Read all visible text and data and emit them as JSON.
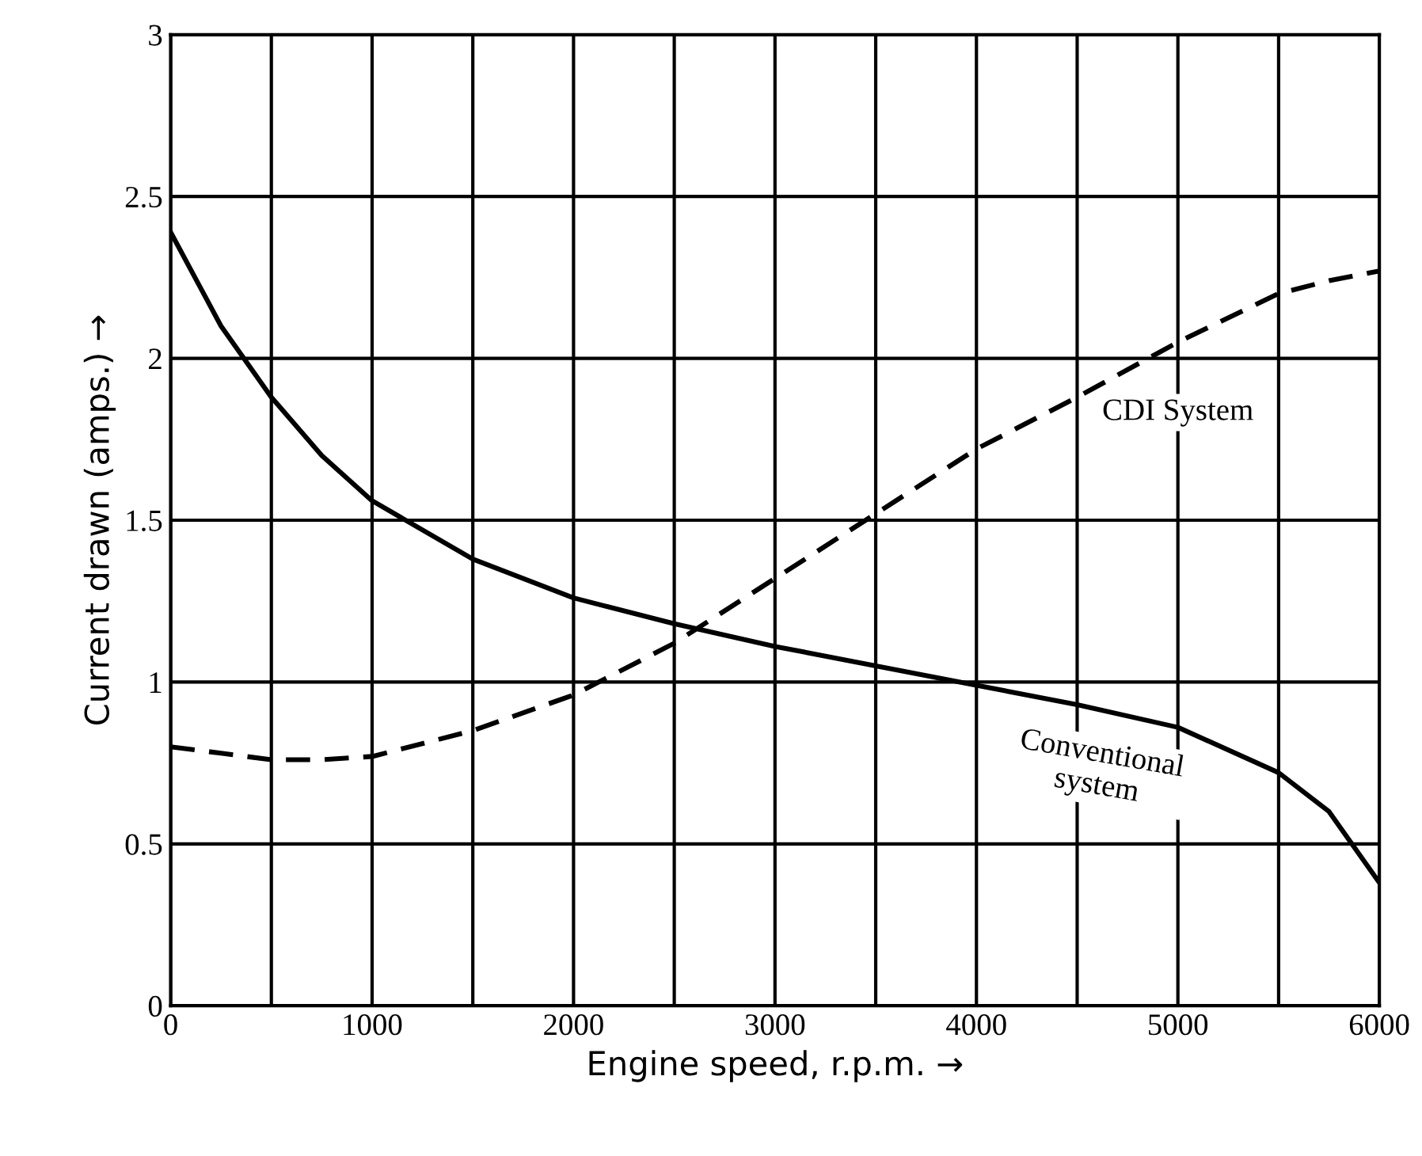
{
  "chart_data": {
    "type": "line",
    "xlabel": "Engine speed, r.p.m. →",
    "ylabel": "Current drawn (amps.) →",
    "x": [
      0,
      250,
      500,
      750,
      1000,
      1500,
      2000,
      2500,
      3000,
      3500,
      4000,
      4500,
      5000,
      5500,
      5750,
      6000
    ],
    "series": [
      {
        "name": "Conventional\nsystem",
        "color": "#000000",
        "line_style": "solid",
        "values": [
          2.39,
          2.1,
          1.88,
          1.7,
          1.56,
          1.38,
          1.26,
          1.18,
          1.11,
          1.05,
          0.99,
          0.93,
          0.86,
          0.72,
          0.6,
          0.38
        ]
      },
      {
        "name": "CDI System",
        "color": "#000000",
        "line_style": "dashed",
        "values": [
          0.8,
          0.78,
          0.76,
          0.76,
          0.77,
          0.85,
          0.96,
          1.12,
          1.32,
          1.52,
          1.72,
          1.88,
          2.05,
          2.2,
          2.24,
          2.27
        ]
      }
    ],
    "xlim": [
      0,
      6000
    ],
    "ylim": [
      0,
      3
    ],
    "xticks": [
      0,
      {
        "value": 500,
        "label": null
      },
      1000,
      {
        "value": 1500,
        "label": null
      },
      2000,
      {
        "value": 2500,
        "label": null
      },
      3000,
      {
        "value": 3500,
        "label": null
      },
      4000,
      {
        "value": 4500,
        "label": null
      },
      5000,
      {
        "value": 5500,
        "label": null
      },
      6000
    ],
    "yticks": [
      0,
      0.5,
      1,
      1.5,
      2,
      2.5,
      3
    ],
    "grid": true,
    "marker": "none"
  }
}
